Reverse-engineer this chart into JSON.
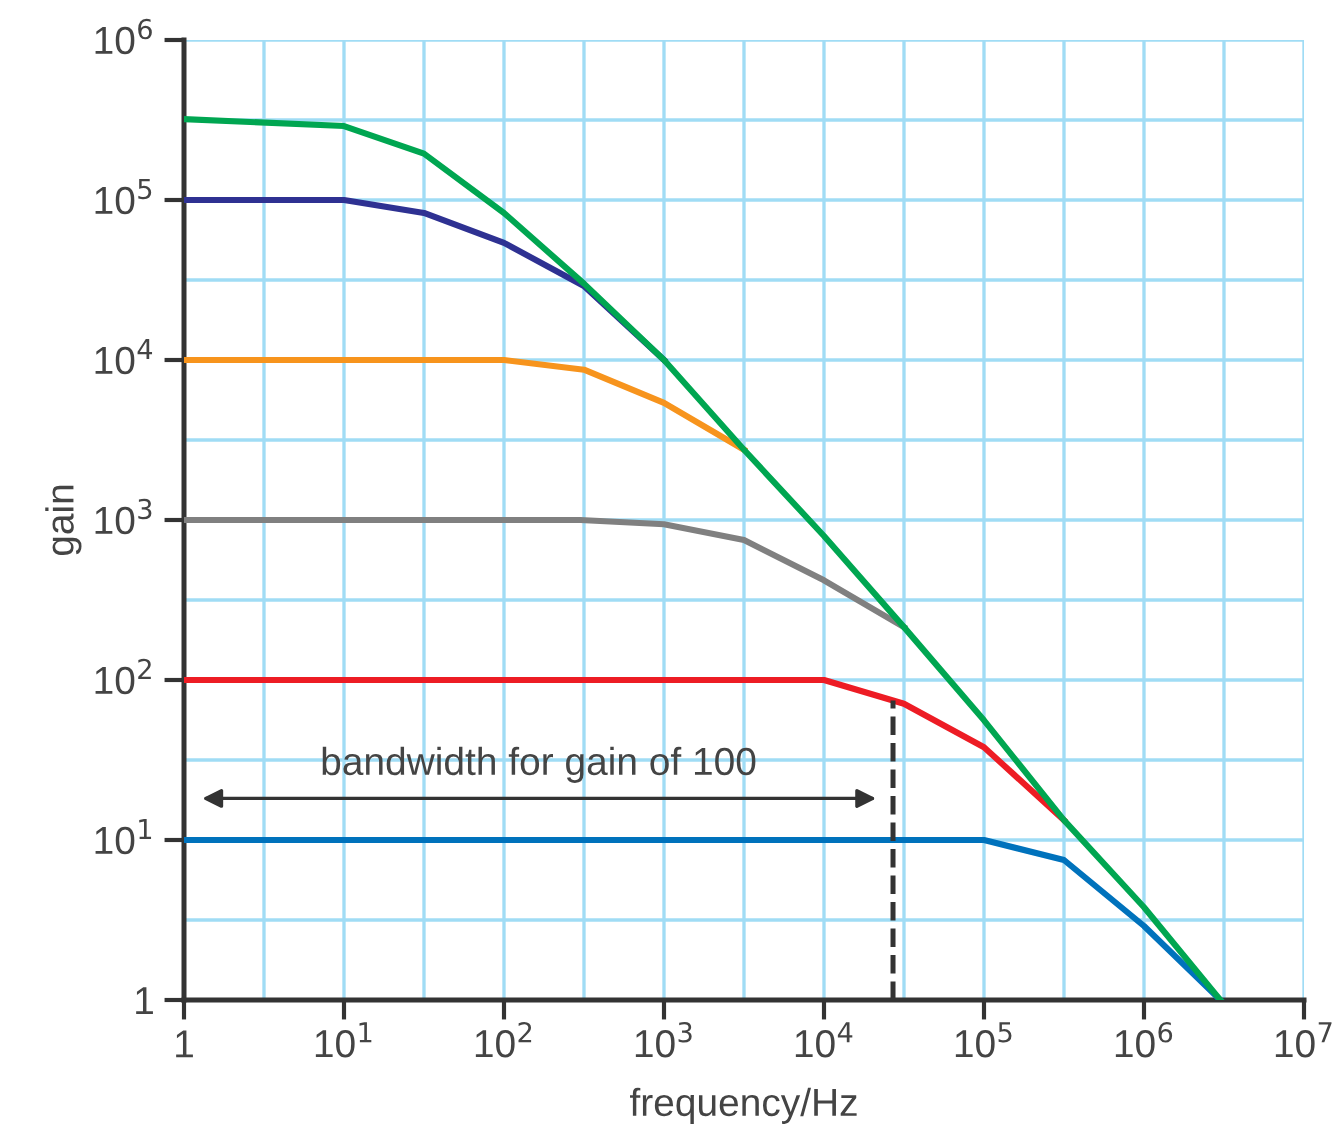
{
  "chart_data": {
    "type": "line",
    "xlabel": "frequency/Hz",
    "ylabel": "gain",
    "log": "xy",
    "grid": true,
    "legend": false,
    "marker": "none",
    "line_style": "solid",
    "xlim": [
      1,
      10000000
    ],
    "ylim": [
      1,
      1000000
    ],
    "xticks": [
      {
        "value": 1,
        "label": "1"
      },
      {
        "value": 3.162,
        "label": null
      },
      {
        "value": 10,
        "label": "10$^{1}$"
      },
      {
        "value": 31.62,
        "label": null
      },
      {
        "value": 100,
        "label": "10$^{2}$"
      },
      {
        "value": 316.2,
        "label": null
      },
      {
        "value": 1000,
        "label": "10$^{3}$"
      },
      {
        "value": 3162,
        "label": null
      },
      {
        "value": 10000,
        "label": "10$^{4}$"
      },
      {
        "value": 31620,
        "label": null
      },
      {
        "value": 100000,
        "label": "10$^{5}$"
      },
      {
        "value": 316200,
        "label": null
      },
      {
        "value": 1000000,
        "label": "10$^{6}$"
      },
      {
        "value": 3162000,
        "label": null
      },
      {
        "value": 10000000,
        "label": "10$^{7}$"
      }
    ],
    "yticks": [
      {
        "value": 1,
        "label": "1"
      },
      {
        "value": 3.162,
        "label": null
      },
      {
        "value": 10,
        "label": "10$^{1}$"
      },
      {
        "value": 31.62,
        "label": null
      },
      {
        "value": 100,
        "label": "10$^{2}$"
      },
      {
        "value": 316.2,
        "label": null
      },
      {
        "value": 1000,
        "label": "10$^{3}$"
      },
      {
        "value": 3162,
        "label": null
      },
      {
        "value": 10000,
        "label": "10$^{4}$"
      },
      {
        "value": 31620,
        "label": null
      },
      {
        "value": 100000,
        "label": "10$^{5}$"
      },
      {
        "value": 316200,
        "label": null
      },
      {
        "value": 1000000,
        "label": "10$^{6}$"
      }
    ],
    "series": [
      {
        "color": "#0072bc",
        "x": [
          1,
          100000,
          316000,
          1000000,
          3000000
        ],
        "values": [
          10,
          10,
          7.5,
          2.9,
          1
        ]
      },
      {
        "color": "#ed1c24",
        "x": [
          1,
          10000,
          31600,
          100000,
          316000
        ],
        "values": [
          100,
          100,
          71,
          38,
          13.3
        ]
      },
      {
        "color": "#808080",
        "x": [
          1,
          300,
          1000,
          3162,
          10000,
          31600
        ],
        "values": [
          1000,
          1000,
          940,
          750,
          420,
          214
        ]
      },
      {
        "color": "#f7941d",
        "x": [
          1,
          100,
          316,
          1000,
          3162
        ],
        "values": [
          10000,
          10000,
          8700,
          5400,
          2750
        ]
      },
      {
        "color": "#2e3192",
        "x": [
          1,
          10,
          31.6,
          100,
          316,
          1000
        ],
        "values": [
          100000,
          100000,
          83000,
          54000,
          29000,
          10000
        ]
      },
      {
        "color": "#00a651",
        "x": [
          1,
          10,
          31.6,
          100,
          316,
          1000,
          3162,
          10000,
          31600,
          100000,
          316000,
          1000000,
          3000000
        ],
        "values": [
          320000,
          290000,
          195000,
          83000,
          30000,
          10000,
          2750,
          794,
          214,
          56,
          13.3,
          3.8,
          1
        ]
      }
    ],
    "ref_lines": [
      {
        "axis": "x",
        "value": 27000,
        "color": "#333333",
        "line_style": "dashed"
      }
    ],
    "annotations": [
      "bandwidth for gain of 100"
    ]
  }
}
